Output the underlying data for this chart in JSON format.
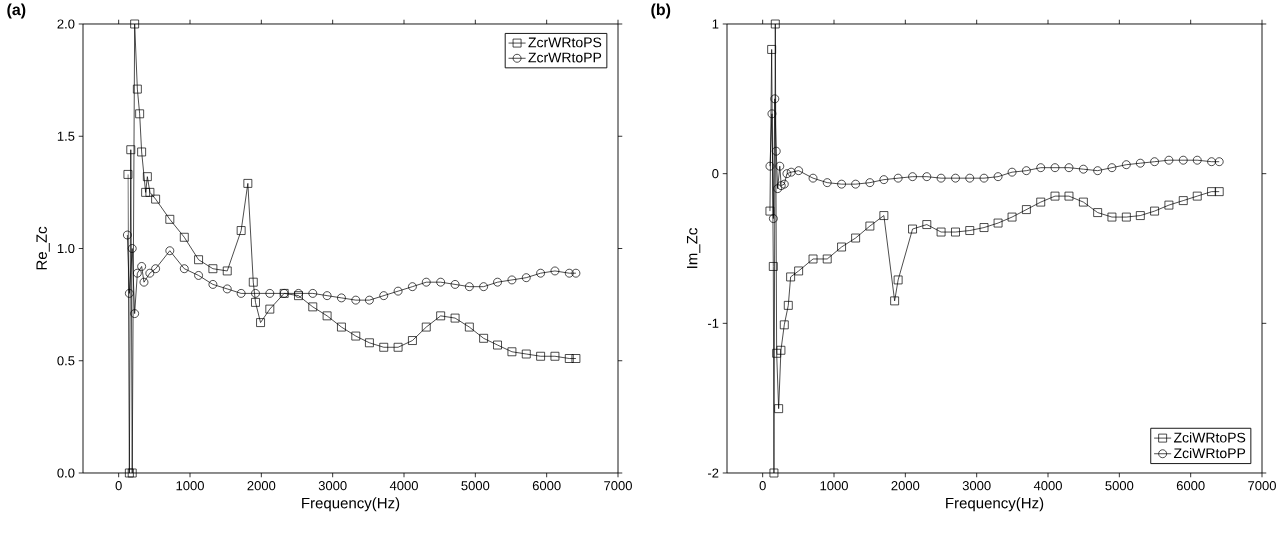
{
  "chart_data": [
    {
      "type": "line",
      "annotations": [
        "(a)"
      ],
      "xlabel": "Frequency(Hz)",
      "ylabel": "Re_Zc",
      "xlim": [
        -500,
        7000
      ],
      "ylim": [
        0,
        2
      ],
      "xticks": [
        0,
        1000,
        2000,
        3000,
        4000,
        5000,
        6000,
        7000
      ],
      "yticks": [
        {
          "value": 0,
          "label": "0.0"
        },
        {
          "value": 0.5,
          "label": "0.5"
        },
        {
          "value": 1,
          "label": "1.0"
        },
        {
          "value": 1.5,
          "label": "1.5"
        },
        {
          "value": 2,
          "label": "2.0"
        }
      ],
      "legend": "top right",
      "grid": false,
      "series": [
        {
          "name": "ZcrWRtoPS",
          "color": "#000000",
          "marker": "square",
          "x": [
            130,
            150,
            170,
            190,
            224,
            262,
            294,
            322,
            378,
            402,
            438,
            518,
            717,
            920,
            1120,
            1321,
            1522,
            1717,
            1811,
            1887,
            1918,
            1989,
            2119,
            2320,
            2521,
            2721,
            2922,
            3123,
            3324,
            3515,
            3716,
            3917,
            4118,
            4312,
            4514,
            4716,
            4916,
            5116,
            5311,
            5513,
            5714,
            5915,
            6116,
            6317,
            6410
          ],
          "values": [
            1.33,
            0.0,
            1.44,
            0.0,
            2.0,
            1.71,
            1.6,
            1.43,
            1.25,
            1.32,
            1.25,
            1.22,
            1.13,
            1.05,
            0.95,
            0.91,
            0.9,
            1.08,
            1.29,
            0.85,
            0.76,
            0.67,
            0.73,
            0.8,
            0.79,
            0.74,
            0.7,
            0.65,
            0.61,
            0.58,
            0.56,
            0.56,
            0.59,
            0.65,
            0.7,
            0.69,
            0.65,
            0.6,
            0.57,
            0.54,
            0.53,
            0.52,
            0.52,
            0.51,
            0.51
          ]
        },
        {
          "name": "ZcrWRtoPP",
          "color": "#000000",
          "marker": "circle",
          "x": [
            122,
            150,
            190,
            224,
            262,
            322,
            355,
            437,
            518,
            717,
            920,
            1120,
            1321,
            1522,
            1717,
            1918,
            2119,
            2320,
            2521,
            2721,
            2922,
            3123,
            3324,
            3515,
            3716,
            3917,
            4118,
            4312,
            4514,
            4716,
            4916,
            5116,
            5311,
            5513,
            5714,
            5915,
            6116,
            6317,
            6410
          ],
          "values": [
            1.06,
            0.8,
            1.0,
            0.71,
            0.89,
            0.92,
            0.85,
            0.89,
            0.91,
            0.99,
            0.91,
            0.88,
            0.84,
            0.82,
            0.8,
            0.8,
            0.8,
            0.8,
            0.8,
            0.8,
            0.79,
            0.78,
            0.77,
            0.77,
            0.79,
            0.81,
            0.83,
            0.85,
            0.85,
            0.84,
            0.83,
            0.83,
            0.85,
            0.86,
            0.87,
            0.89,
            0.9,
            0.89,
            0.89
          ]
        }
      ]
    },
    {
      "type": "line",
      "annotations": [
        "(b)"
      ],
      "xlabel": "Frequency(Hz)",
      "ylabel": "Im_Zc",
      "xlim": [
        -500,
        7000
      ],
      "ylim": [
        -2,
        1
      ],
      "xticks": [
        0,
        1000,
        2000,
        3000,
        4000,
        5000,
        6000,
        7000
      ],
      "yticks": [
        -2,
        -1,
        0,
        1
      ],
      "legend": "bottom right",
      "grid": false,
      "series": [
        {
          "name": "ZciWRtoPS",
          "color": "#000000",
          "marker": "square",
          "x": [
            102,
            126,
            149,
            158,
            177,
            196,
            224,
            256,
            303,
            359,
            392,
            504,
            706,
            905,
            1106,
            1303,
            1503,
            1699,
            1850,
            1899,
            2101,
            2301,
            2501,
            2703,
            2903,
            3103,
            3300,
            3496,
            3697,
            3898,
            4098,
            4294,
            4496,
            4696,
            4896,
            5098,
            5294,
            5494,
            5695,
            5896,
            6092,
            6293,
            6400
          ],
          "values": [
            -0.25,
            0.83,
            -0.62,
            -2.0,
            1.0,
            -1.2,
            -1.57,
            -1.18,
            -1.01,
            -0.88,
            -0.69,
            -0.65,
            -0.57,
            -0.57,
            -0.49,
            -0.43,
            -0.35,
            -0.28,
            -0.85,
            -0.71,
            -0.37,
            -0.34,
            -0.39,
            -0.39,
            -0.38,
            -0.36,
            -0.33,
            -0.29,
            -0.24,
            -0.19,
            -0.15,
            -0.15,
            -0.19,
            -0.26,
            -0.29,
            -0.29,
            -0.28,
            -0.25,
            -0.21,
            -0.18,
            -0.15,
            -0.12,
            -0.12
          ]
        },
        {
          "name": "ZciWRtoPP",
          "color": "#000000",
          "marker": "circle",
          "x": [
            102,
            130,
            150,
            170,
            190,
            210,
            240,
            260,
            303,
            340,
            400,
            504,
            706,
            905,
            1106,
            1303,
            1503,
            1699,
            1899,
            2101,
            2301,
            2501,
            2703,
            2903,
            3103,
            3300,
            3496,
            3697,
            3898,
            4098,
            4294,
            4496,
            4696,
            4896,
            5098,
            5294,
            5494,
            5695,
            5896,
            6092,
            6293,
            6400
          ],
          "values": [
            0.05,
            0.4,
            -0.3,
            0.5,
            0.15,
            -0.1,
            0.05,
            -0.08,
            -0.07,
            0.0,
            0.01,
            0.02,
            -0.03,
            -0.06,
            -0.07,
            -0.07,
            -0.06,
            -0.04,
            -0.03,
            -0.02,
            -0.02,
            -0.03,
            -0.03,
            -0.03,
            -0.03,
            -0.02,
            0.01,
            0.02,
            0.04,
            0.04,
            0.04,
            0.03,
            0.02,
            0.04,
            0.06,
            0.07,
            0.08,
            0.09,
            0.09,
            0.09,
            0.08,
            0.08
          ]
        }
      ]
    }
  ]
}
